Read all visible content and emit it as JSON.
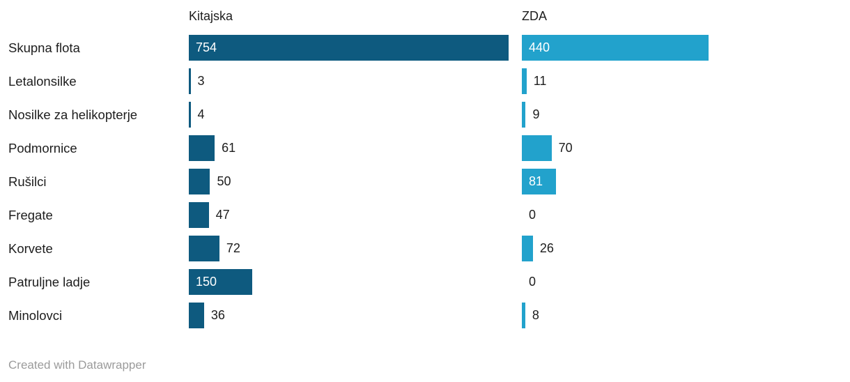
{
  "chart_data": {
    "type": "bar",
    "orientation": "horizontal",
    "title": "",
    "categories": [
      "Skupna flota",
      "Letalonsilke",
      "Nosilke za helikopterje",
      "Podmornice",
      "Rušilci",
      "Fregate",
      "Korvete",
      "Patruljne ladje",
      "Minolovci"
    ],
    "series": [
      {
        "name": "Kitajska",
        "color": "#0e5a7f",
        "values": [
          754,
          3,
          4,
          61,
          50,
          47,
          72,
          150,
          36
        ]
      },
      {
        "name": "ZDA",
        "color": "#22a2cc",
        "values": [
          440,
          11,
          9,
          70,
          81,
          0,
          26,
          0,
          8
        ]
      }
    ],
    "xmax": 754,
    "grid": false,
    "legend_position": "column-headers-above-bars",
    "value_labels": "at bar end; inside bar in white when bar is wide enough"
  },
  "colors": {
    "kitajska_bar": "#0e5a7f",
    "zda_bar": "#22a2cc",
    "text": "#1d1d1d",
    "inside_value_label": "#ffffff",
    "credit_text": "#9b9b9b",
    "background": "#ffffff"
  },
  "footer": {
    "credit": "Created with Datawrapper"
  }
}
